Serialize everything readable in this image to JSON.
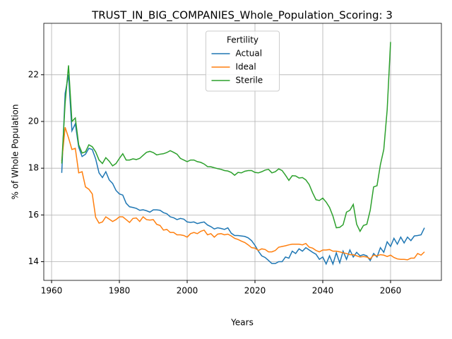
{
  "chart_data": {
    "type": "line",
    "title": "TRUST_IN_BIG_COMPANIES_Whole_Population_Scoring: 3",
    "xlabel": "Years",
    "ylabel": "% of Whole Population",
    "legend_title": "Fertility",
    "legend": "upper center",
    "grid": true,
    "xlim": [
      1957.7,
      2075
    ],
    "ylim": [
      13.2,
      24.2
    ],
    "xticks": [
      1960,
      1980,
      2000,
      2020,
      2040,
      2060
    ],
    "yticks": [
      14,
      16,
      18,
      20,
      22
    ],
    "x": [
      1963,
      1964,
      1965,
      1966,
      1967,
      1968,
      1969,
      1970,
      1971,
      1972,
      1973,
      1974,
      1975,
      1976,
      1977,
      1978,
      1979,
      1980,
      1981,
      1982,
      1983,
      1984,
      1985,
      1986,
      1987,
      1988,
      1989,
      1990,
      1991,
      1992,
      1993,
      1994,
      1995,
      1996,
      1997,
      1998,
      1999,
      2000,
      2001,
      2002,
      2003,
      2004,
      2005,
      2006,
      2007,
      2008,
      2009,
      2010,
      2011,
      2012,
      2013,
      2014,
      2015,
      2016,
      2017,
      2018,
      2019,
      2020,
      2021,
      2022,
      2023,
      2024,
      2025,
      2026,
      2027,
      2028,
      2029,
      2030,
      2031,
      2032,
      2033,
      2034,
      2035,
      2036,
      2037,
      2038,
      2039,
      2040,
      2041,
      2042,
      2043,
      2044,
      2045,
      2046,
      2047,
      2048,
      2049,
      2050,
      2051,
      2052,
      2053,
      2054,
      2055,
      2056,
      2057,
      2058,
      2059,
      2060,
      2061,
      2062,
      2063,
      2064,
      2065,
      2066,
      2067,
      2068,
      2069,
      2070
    ],
    "series": [
      {
        "name": "Actual",
        "color": "#1f77b4",
        "values": [
          17.8,
          21.2,
          22.0,
          19.6,
          19.9,
          18.9,
          18.5,
          18.6,
          18.85,
          18.8,
          18.4,
          17.8,
          17.6,
          17.85,
          17.5,
          17.35,
          17.05,
          16.9,
          16.85,
          16.5,
          16.35,
          16.32,
          16.28,
          16.2,
          16.22,
          16.18,
          16.12,
          16.22,
          16.22,
          16.2,
          16.1,
          16.05,
          15.92,
          15.88,
          15.8,
          15.85,
          15.82,
          15.7,
          15.68,
          15.7,
          15.63,
          15.67,
          15.7,
          15.57,
          15.5,
          15.4,
          15.45,
          15.42,
          15.38,
          15.45,
          15.22,
          15.12,
          15.12,
          15.1,
          15.08,
          15.02,
          14.9,
          14.7,
          14.45,
          14.25,
          14.18,
          14.05,
          13.92,
          13.92,
          14.0,
          14.0,
          14.2,
          14.15,
          14.45,
          14.35,
          14.55,
          14.45,
          14.6,
          14.5,
          14.4,
          14.32,
          14.1,
          14.2,
          13.9,
          14.25,
          13.9,
          14.38,
          13.95,
          14.45,
          14.1,
          14.5,
          14.2,
          14.4,
          14.25,
          14.3,
          14.25,
          14.05,
          14.35,
          14.2,
          14.6,
          14.4,
          14.85,
          14.65,
          15.0,
          14.75,
          15.05,
          14.8,
          15.05,
          14.9,
          15.1,
          15.12,
          15.15,
          15.45
        ]
      },
      {
        "name": "Ideal",
        "color": "#ff7f0e",
        "values": [
          18.3,
          19.75,
          19.3,
          18.8,
          18.85,
          17.8,
          17.85,
          17.2,
          17.1,
          16.9,
          15.9,
          15.65,
          15.7,
          15.92,
          15.82,
          15.72,
          15.8,
          15.92,
          15.92,
          15.8,
          15.68,
          15.85,
          15.87,
          15.72,
          15.92,
          15.8,
          15.78,
          15.8,
          15.6,
          15.55,
          15.35,
          15.38,
          15.25,
          15.25,
          15.15,
          15.15,
          15.12,
          15.05,
          15.2,
          15.25,
          15.2,
          15.3,
          15.35,
          15.15,
          15.2,
          15.05,
          15.18,
          15.2,
          15.15,
          15.18,
          15.1,
          15.0,
          14.95,
          14.88,
          14.82,
          14.72,
          14.6,
          14.58,
          14.48,
          14.55,
          14.52,
          14.42,
          14.42,
          14.48,
          14.62,
          14.65,
          14.68,
          14.72,
          14.75,
          14.75,
          14.75,
          14.72,
          14.78,
          14.62,
          14.58,
          14.48,
          14.42,
          14.5,
          14.5,
          14.52,
          14.45,
          14.45,
          14.42,
          14.38,
          14.35,
          14.3,
          14.3,
          14.25,
          14.2,
          14.22,
          14.2,
          14.12,
          14.28,
          14.25,
          14.3,
          14.28,
          14.22,
          14.28,
          14.18,
          14.12,
          14.1,
          14.1,
          14.08,
          14.15,
          14.15,
          14.35,
          14.28,
          14.42
        ]
      },
      {
        "name": "Sterile",
        "color": "#2ca02c",
        "values": [
          18.2,
          20.8,
          22.4,
          20.0,
          20.15,
          19.0,
          18.65,
          18.7,
          19.0,
          18.92,
          18.7,
          18.35,
          18.2,
          18.45,
          18.3,
          18.1,
          18.2,
          18.42,
          18.62,
          18.35,
          18.35,
          18.4,
          18.37,
          18.42,
          18.55,
          18.68,
          18.72,
          18.67,
          18.57,
          18.6,
          18.62,
          18.67,
          18.75,
          18.68,
          18.6,
          18.42,
          18.35,
          18.28,
          18.35,
          18.35,
          18.28,
          18.25,
          18.18,
          18.07,
          18.06,
          18.02,
          17.98,
          17.95,
          17.9,
          17.88,
          17.82,
          17.7,
          17.82,
          17.8,
          17.87,
          17.9,
          17.9,
          17.82,
          17.8,
          17.85,
          17.92,
          17.95,
          17.8,
          17.85,
          17.97,
          17.9,
          17.7,
          17.48,
          17.68,
          17.67,
          17.58,
          17.6,
          17.5,
          17.3,
          16.95,
          16.65,
          16.62,
          16.72,
          16.55,
          16.32,
          15.95,
          15.45,
          15.47,
          15.58,
          16.12,
          16.2,
          16.45,
          15.6,
          15.3,
          15.55,
          15.6,
          16.2,
          17.2,
          17.25,
          18.15,
          18.8,
          20.5,
          23.4,
          null,
          null,
          null,
          null,
          null,
          null,
          null,
          null,
          null,
          null
        ]
      }
    ]
  }
}
